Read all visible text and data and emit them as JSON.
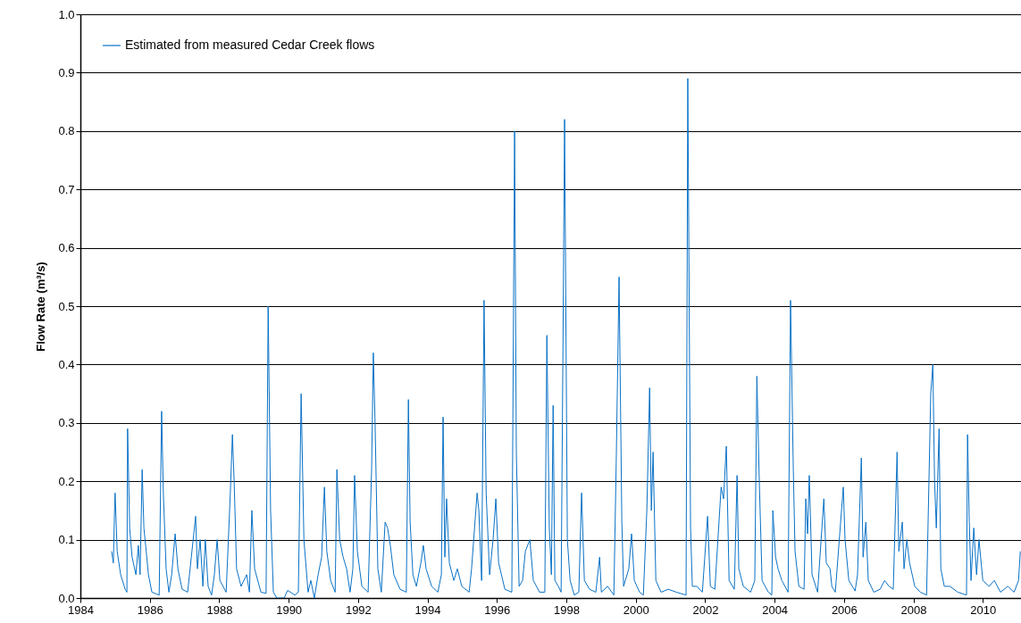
{
  "chart_data": {
    "type": "line",
    "ylabel": "Flow Rate (m³/s)",
    "xlim": [
      1984,
      2011.1
    ],
    "ylim": [
      0,
      1
    ],
    "xticks": [
      1984,
      1986,
      1988,
      1990,
      1992,
      1994,
      1996,
      1998,
      2000,
      2002,
      2004,
      2006,
      2008,
      2010
    ],
    "yticks": [
      {
        "value": 0,
        "label": "0.0"
      },
      {
        "value": 0.1,
        "label": "0.1"
      },
      {
        "value": 0.2,
        "label": "0.2"
      },
      {
        "value": 0.3,
        "label": "0.3"
      },
      {
        "value": 0.4,
        "label": "0.4"
      },
      {
        "value": 0.5,
        "label": "0.5"
      },
      {
        "value": 0.6,
        "label": "0.6"
      },
      {
        "value": 0.7,
        "label": "0.7"
      },
      {
        "value": 0.8,
        "label": "0.8"
      },
      {
        "value": 0.9,
        "label": "0.9"
      },
      {
        "value": 1,
        "label": "1.0"
      }
    ],
    "grid": "y",
    "legend": "top left",
    "line_style": "solid",
    "marker": "none",
    "series": [
      {
        "name": "Estimated from measured Cedar Creek flows",
        "color": "#0a72c6",
        "x": [
          1984.9,
          1984.95,
          1984.98,
          1985.0,
          1985.06,
          1985.16,
          1985.29,
          1985.34,
          1985.36,
          1985.42,
          1985.49,
          1985.6,
          1985.67,
          1985.72,
          1985.78,
          1985.83,
          1985.88,
          1985.96,
          1986.06,
          1986.27,
          1986.34,
          1986.39,
          1986.47,
          1986.55,
          1986.63,
          1986.73,
          1986.81,
          1986.93,
          1987.09,
          1987.32,
          1987.37,
          1987.45,
          1987.53,
          1987.6,
          1987.68,
          1987.78,
          1987.86,
          1987.94,
          1988.02,
          1988.2,
          1988.32,
          1988.38,
          1988.43,
          1988.5,
          1988.63,
          1988.79,
          1988.87,
          1988.94,
          1989.02,
          1989.2,
          1989.35,
          1989.41,
          1989.48,
          1989.56,
          1989.66,
          1989.87,
          1989.97,
          1990.18,
          1990.28,
          1990.36,
          1990.44,
          1990.56,
          1990.64,
          1990.74,
          1990.85,
          1990.95,
          1991.03,
          1991.1,
          1991.21,
          1991.34,
          1991.39,
          1991.47,
          1991.57,
          1991.67,
          1991.77,
          1991.85,
          1991.9,
          1991.98,
          1992.11,
          1992.29,
          1992.39,
          1992.44,
          1992.49,
          1992.57,
          1992.67,
          1992.78,
          1992.85,
          1992.93,
          1993.03,
          1993.21,
          1993.39,
          1993.45,
          1993.5,
          1993.58,
          1993.68,
          1993.81,
          1993.88,
          1993.96,
          1994.12,
          1994.3,
          1994.4,
          1994.45,
          1994.5,
          1994.55,
          1994.63,
          1994.76,
          1994.86,
          1994.99,
          1995.2,
          1995.27,
          1995.43,
          1995.48,
          1995.56,
          1995.63,
          1995.69,
          1995.79,
          1995.89,
          1995.97,
          1996.05,
          1996.23,
          1996.43,
          1996.51,
          1996.56,
          1996.64,
          1996.74,
          1996.82,
          1996.95,
          1997.05,
          1997.23,
          1997.38,
          1997.44,
          1997.51,
          1997.57,
          1997.62,
          1997.67,
          1997.77,
          1997.85,
          1997.9,
          1997.95,
          1998.03,
          1998.11,
          1998.23,
          1998.36,
          1998.44,
          1998.52,
          1998.67,
          1998.85,
          1998.96,
          1999.01,
          1999.19,
          1999.37,
          1999.44,
          1999.52,
          1999.6,
          1999.65,
          1999.8,
          1999.88,
          1999.96,
          2000.11,
          2000.22,
          2000.32,
          2000.4,
          2000.45,
          2000.5,
          2000.58,
          2000.73,
          2000.94,
          2001.17,
          2001.45,
          2001.5,
          2001.58,
          2001.63,
          2001.76,
          2001.92,
          2002.07,
          2002.15,
          2002.28,
          2002.46,
          2002.53,
          2002.61,
          2002.69,
          2002.84,
          2002.92,
          2002.97,
          2003.1,
          2003.31,
          2003.43,
          2003.49,
          2003.56,
          2003.64,
          2003.82,
          2003.92,
          2003.95,
          2004.03,
          2004.1,
          2004.21,
          2004.39,
          2004.46,
          2004.54,
          2004.59,
          2004.7,
          2004.85,
          2004.9,
          2004.95,
          2005.0,
          2005.08,
          2005.24,
          2005.42,
          2005.49,
          2005.6,
          2005.65,
          2005.75,
          2005.98,
          2006.03,
          2006.14,
          2006.32,
          2006.39,
          2006.5,
          2006.55,
          2006.63,
          2006.7,
          2006.86,
          2007.04,
          2007.17,
          2007.3,
          2007.42,
          2007.53,
          2007.58,
          2007.68,
          2007.73,
          2007.81,
          2007.89,
          2008.04,
          2008.2,
          2008.38,
          2008.5,
          2008.56,
          2008.61,
          2008.66,
          2008.74,
          2008.79,
          2008.89,
          2009.05,
          2009.28,
          2009.53,
          2009.56,
          2009.61,
          2009.66,
          2009.74,
          2009.82,
          2009.89,
          2010.0,
          2010.18,
          2010.33,
          2010.51,
          2010.72,
          2010.9,
          2011.03,
          2011.08
        ],
        "values": [
          0.08,
          0.06,
          0.14,
          0.18,
          0.08,
          0.04,
          0.015,
          0.01,
          0.29,
          0.12,
          0.07,
          0.04,
          0.09,
          0.04,
          0.22,
          0.12,
          0.09,
          0.04,
          0.01,
          0.005,
          0.32,
          0.18,
          0.05,
          0.01,
          0.04,
          0.11,
          0.05,
          0.015,
          0.01,
          0.14,
          0.05,
          0.1,
          0.02,
          0.1,
          0.02,
          0.005,
          0.04,
          0.1,
          0.03,
          0.01,
          0.18,
          0.28,
          0.2,
          0.05,
          0.02,
          0.04,
          0.01,
          0.15,
          0.05,
          0.01,
          0.008,
          0.5,
          0.15,
          0.01,
          0.0,
          0.0,
          0.013,
          0.005,
          0.01,
          0.35,
          0.1,
          0.01,
          0.03,
          0.0,
          0.04,
          0.07,
          0.19,
          0.08,
          0.03,
          0.01,
          0.22,
          0.1,
          0.07,
          0.05,
          0.01,
          0.05,
          0.21,
          0.08,
          0.02,
          0.01,
          0.22,
          0.42,
          0.3,
          0.05,
          0.01,
          0.13,
          0.12,
          0.09,
          0.04,
          0.015,
          0.01,
          0.34,
          0.13,
          0.04,
          0.02,
          0.06,
          0.09,
          0.05,
          0.02,
          0.01,
          0.04,
          0.31,
          0.07,
          0.17,
          0.06,
          0.03,
          0.05,
          0.02,
          0.01,
          0.05,
          0.18,
          0.15,
          0.03,
          0.51,
          0.18,
          0.04,
          0.1,
          0.17,
          0.06,
          0.015,
          0.01,
          0.8,
          0.25,
          0.02,
          0.03,
          0.08,
          0.1,
          0.03,
          0.01,
          0.01,
          0.45,
          0.12,
          0.04,
          0.33,
          0.03,
          0.02,
          0.01,
          0.4,
          0.82,
          0.1,
          0.03,
          0.005,
          0.01,
          0.18,
          0.03,
          0.015,
          0.01,
          0.07,
          0.01,
          0.02,
          0.005,
          0.24,
          0.55,
          0.13,
          0.02,
          0.05,
          0.11,
          0.03,
          0.01,
          0.005,
          0.15,
          0.36,
          0.15,
          0.25,
          0.03,
          0.01,
          0.015,
          0.01,
          0.005,
          0.89,
          0.12,
          0.02,
          0.02,
          0.01,
          0.14,
          0.02,
          0.015,
          0.19,
          0.17,
          0.26,
          0.03,
          0.015,
          0.21,
          0.05,
          0.02,
          0.01,
          0.03,
          0.38,
          0.2,
          0.03,
          0.01,
          0.005,
          0.15,
          0.07,
          0.05,
          0.03,
          0.01,
          0.51,
          0.22,
          0.08,
          0.02,
          0.015,
          0.17,
          0.11,
          0.21,
          0.04,
          0.01,
          0.17,
          0.06,
          0.05,
          0.02,
          0.01,
          0.19,
          0.1,
          0.03,
          0.012,
          0.04,
          0.24,
          0.07,
          0.13,
          0.03,
          0.01,
          0.015,
          0.03,
          0.02,
          0.015,
          0.25,
          0.08,
          0.13,
          0.05,
          0.1,
          0.06,
          0.02,
          0.01,
          0.005,
          0.35,
          0.4,
          0.2,
          0.12,
          0.29,
          0.05,
          0.02,
          0.02,
          0.01,
          0.005,
          0.28,
          0.13,
          0.03,
          0.12,
          0.04,
          0.1,
          0.03,
          0.02,
          0.03,
          0.01,
          0.02,
          0.01,
          0.03,
          0.08
        ]
      }
    ]
  }
}
